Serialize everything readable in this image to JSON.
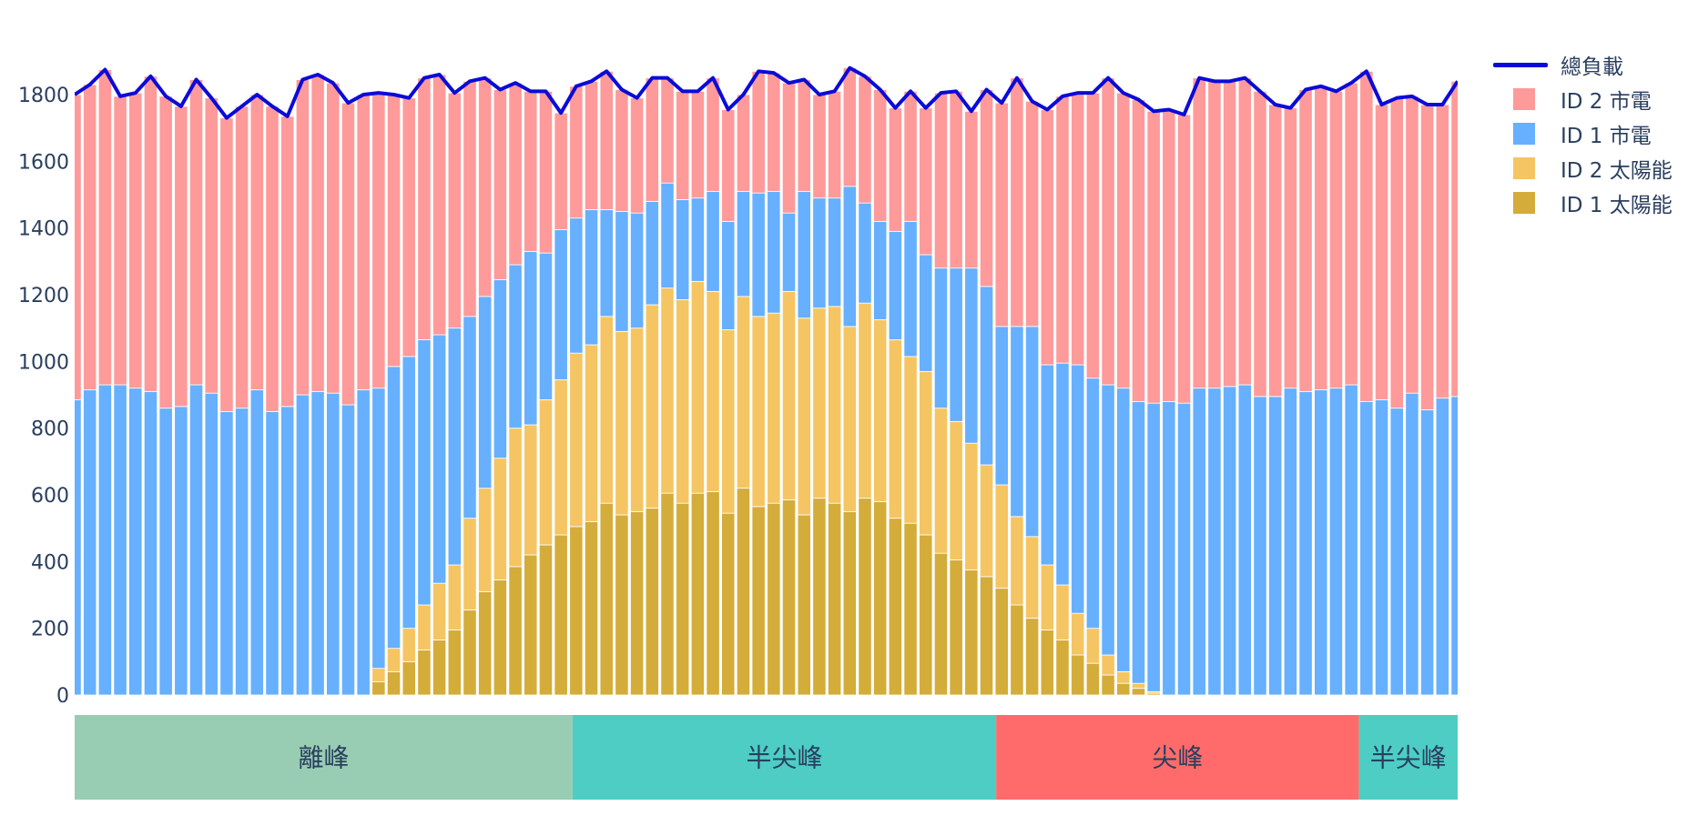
{
  "chart_data": {
    "type": "bar",
    "barmode": "stack",
    "title": "",
    "xlabel": "",
    "ylabel": "",
    "ylim": [
      0,
      1900
    ],
    "yticks": [
      0,
      200,
      400,
      600,
      800,
      1000,
      1200,
      1400,
      1600,
      1800
    ],
    "grid": false,
    "legend_position": "right",
    "n_bars": 92,
    "series": [
      {
        "name": "ID 1 太陽能",
        "color": "#d4ac3a",
        "values": [
          0,
          0,
          0,
          0,
          0,
          0,
          0,
          0,
          0,
          0,
          0,
          0,
          0,
          0,
          0,
          0,
          0,
          0,
          0,
          0,
          40,
          70,
          100,
          135,
          165,
          195,
          255,
          310,
          345,
          385,
          420,
          450,
          480,
          505,
          520,
          575,
          540,
          550,
          560,
          605,
          575,
          605,
          610,
          545,
          620,
          565,
          575,
          585,
          540,
          590,
          575,
          550,
          590,
          580,
          530,
          515,
          480,
          425,
          405,
          375,
          355,
          320,
          270,
          230,
          195,
          165,
          120,
          95,
          60,
          35,
          20,
          5,
          0,
          0,
          0,
          0,
          0,
          0,
          0,
          0,
          0,
          0,
          0,
          0,
          0,
          0,
          0,
          0,
          0,
          0,
          0,
          0
        ]
      },
      {
        "name": "ID 2 太陽能",
        "color": "#f5c563",
        "values": [
          0,
          0,
          0,
          0,
          0,
          0,
          0,
          0,
          0,
          0,
          0,
          0,
          0,
          0,
          0,
          0,
          0,
          0,
          0,
          0,
          40,
          70,
          100,
          135,
          170,
          195,
          275,
          310,
          365,
          415,
          390,
          435,
          465,
          520,
          530,
          560,
          550,
          550,
          610,
          615,
          610,
          635,
          600,
          550,
          575,
          570,
          570,
          625,
          590,
          570,
          590,
          555,
          585,
          545,
          535,
          500,
          490,
          435,
          415,
          380,
          335,
          310,
          265,
          245,
          195,
          165,
          125,
          105,
          60,
          35,
          15,
          5,
          0,
          0,
          0,
          0,
          0,
          0,
          0,
          0,
          0,
          0,
          0,
          0,
          0,
          0,
          0,
          0,
          0,
          0,
          0,
          0
        ]
      },
      {
        "name": "ID 1 市電",
        "color": "#66b0ff",
        "values": [
          885,
          915,
          930,
          930,
          920,
          910,
          860,
          865,
          930,
          905,
          850,
          860,
          915,
          850,
          865,
          900,
          910,
          905,
          870,
          915,
          840,
          845,
          815,
          795,
          745,
          710,
          605,
          575,
          535,
          490,
          520,
          440,
          450,
          405,
          405,
          320,
          360,
          345,
          310,
          315,
          300,
          250,
          300,
          325,
          315,
          370,
          365,
          235,
          380,
          330,
          325,
          420,
          300,
          295,
          325,
          405,
          350,
          420,
          460,
          525,
          535,
          475,
          570,
          630,
          600,
          665,
          745,
          750,
          810,
          850,
          845,
          865,
          880,
          875,
          920,
          920,
          925,
          930,
          895,
          895,
          920,
          910,
          915,
          920,
          930,
          880,
          885,
          860,
          905,
          855,
          890,
          895
        ]
      },
      {
        "name": "ID 2 市電",
        "color": "#ff9a9a",
        "values": [
          915,
          915,
          945,
          865,
          885,
          945,
          935,
          900,
          915,
          885,
          880,
          905,
          885,
          915,
          870,
          945,
          950,
          930,
          905,
          885,
          885,
          815,
          775,
          785,
          780,
          705,
          705,
          655,
          570,
          545,
          480,
          485,
          350,
          395,
          385,
          415,
          365,
          345,
          370,
          315,
          325,
          320,
          340,
          335,
          290,
          365,
          355,
          390,
          335,
          310,
          320,
          355,
          380,
          395,
          370,
          390,
          440,
          525,
          530,
          470,
          590,
          670,
          745,
          675,
          765,
          800,
          815,
          855,
          920,
          885,
          905,
          875,
          875,
          865,
          930,
          920,
          915,
          920,
          915,
          875,
          840,
          905,
          910,
          890,
          905,
          990,
          885,
          930,
          890,
          915,
          880,
          945
        ]
      }
    ],
    "line_series": {
      "name": "總負載",
      "color": "#0b0bd9",
      "marker_color": "#c99be0"
    },
    "x_bands": [
      {
        "label": "離峰",
        "start": 0,
        "end": 32.8,
        "color": "#98cdb3"
      },
      {
        "label": "半尖峰",
        "start": 32.8,
        "end": 60.7,
        "color": "#4ecdc4"
      },
      {
        "label": "尖峰",
        "start": 60.7,
        "end": 84.6,
        "color": "#ff6b6b"
      },
      {
        "label": "半尖峰",
        "start": 84.6,
        "end": 91.5,
        "color": "#4ecdc4"
      }
    ]
  },
  "legend": {
    "items": [
      {
        "label": "總負載",
        "kind": "line",
        "color": "#0b0bd9"
      },
      {
        "label": "ID 2 市電",
        "kind": "box",
        "color": "#ff9a9a"
      },
      {
        "label": "ID 1 市電",
        "kind": "box",
        "color": "#66b0ff"
      },
      {
        "label": "ID 2 太陽能",
        "kind": "box",
        "color": "#f5c563"
      },
      {
        "label": "ID 1 太陽能",
        "kind": "box",
        "color": "#d4ac3a"
      }
    ]
  }
}
